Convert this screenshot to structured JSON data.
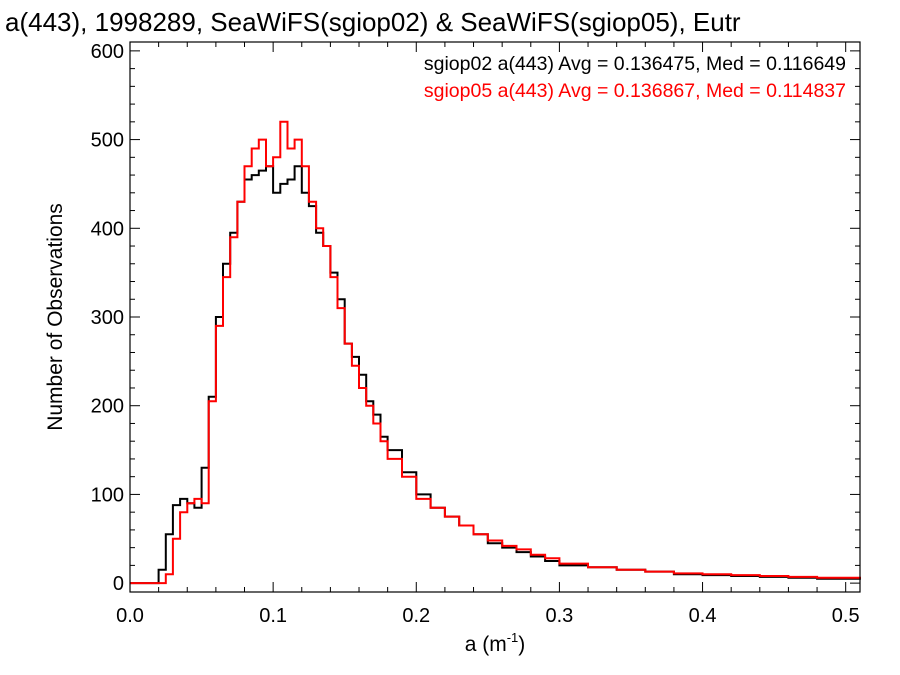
{
  "chart_data": {
    "type": "line",
    "title": "a(443), 1998289, SeaWiFS(sgiop02) & SeaWiFS(sgiop05), Eutr",
    "xlabel": "a (m",
    "xlabel_sup": "-1",
    "xlabel_end": ")",
    "ylabel": "Number of Observations",
    "xlim": [
      0.0,
      0.51
    ],
    "ylim": [
      -10,
      610
    ],
    "xticks": [
      0.0,
      0.1,
      0.2,
      0.3,
      0.4,
      0.5
    ],
    "xtick_labels": [
      "0.0",
      "0.1",
      "0.2",
      "0.3",
      "0.4",
      "0.5"
    ],
    "yticks": [
      0,
      100,
      200,
      300,
      400,
      500,
      600
    ],
    "ytick_labels": [
      "0",
      "100",
      "200",
      "300",
      "400",
      "500",
      "600"
    ],
    "grid": false,
    "legend_position": "top-right",
    "annotations": [
      {
        "text": "sgiop02 a(443) Avg = 0.136475, Med = 0.116649",
        "color": "#000000"
      },
      {
        "text": "sgiop05 a(443) Avg = 0.136867, Med = 0.114837",
        "color": "#ff0000"
      }
    ],
    "series": [
      {
        "color": "#000000",
        "x": [
          0.0,
          0.015,
          0.02,
          0.025,
          0.03,
          0.035,
          0.04,
          0.045,
          0.05,
          0.055,
          0.06,
          0.065,
          0.07,
          0.075,
          0.08,
          0.085,
          0.09,
          0.095,
          0.1,
          0.105,
          0.11,
          0.115,
          0.12,
          0.125,
          0.13,
          0.135,
          0.14,
          0.145,
          0.15,
          0.155,
          0.16,
          0.165,
          0.17,
          0.175,
          0.18,
          0.19,
          0.2,
          0.21,
          0.22,
          0.23,
          0.24,
          0.25,
          0.26,
          0.27,
          0.28,
          0.29,
          0.3,
          0.32,
          0.34,
          0.36,
          0.38,
          0.4,
          0.42,
          0.44,
          0.46,
          0.48,
          0.5,
          0.51
        ],
        "y": [
          0,
          0,
          15,
          55,
          88,
          95,
          90,
          85,
          130,
          210,
          300,
          360,
          395,
          430,
          455,
          460,
          465,
          470,
          440,
          450,
          455,
          470,
          440,
          425,
          395,
          380,
          350,
          320,
          270,
          255,
          235,
          205,
          190,
          165,
          150,
          125,
          100,
          85,
          75,
          65,
          55,
          45,
          40,
          35,
          30,
          25,
          20,
          18,
          15,
          13,
          10,
          9,
          8,
          7,
          6,
          5,
          5,
          4
        ]
      },
      {
        "color": "#ff0000",
        "x": [
          0.0,
          0.02,
          0.025,
          0.03,
          0.035,
          0.04,
          0.045,
          0.05,
          0.055,
          0.06,
          0.065,
          0.07,
          0.075,
          0.08,
          0.085,
          0.09,
          0.095,
          0.1,
          0.105,
          0.11,
          0.115,
          0.12,
          0.125,
          0.13,
          0.135,
          0.14,
          0.145,
          0.15,
          0.155,
          0.16,
          0.165,
          0.17,
          0.175,
          0.18,
          0.19,
          0.2,
          0.21,
          0.22,
          0.23,
          0.24,
          0.25,
          0.26,
          0.27,
          0.28,
          0.29,
          0.3,
          0.32,
          0.34,
          0.36,
          0.38,
          0.4,
          0.42,
          0.44,
          0.46,
          0.48,
          0.5,
          0.51
        ],
        "y": [
          0,
          0,
          10,
          50,
          80,
          90,
          95,
          90,
          205,
          290,
          345,
          390,
          430,
          470,
          490,
          500,
          470,
          480,
          520,
          490,
          500,
          470,
          430,
          400,
          380,
          345,
          310,
          270,
          245,
          220,
          200,
          180,
          160,
          140,
          120,
          95,
          85,
          75,
          65,
          55,
          48,
          42,
          38,
          32,
          28,
          22,
          18,
          15,
          13,
          11,
          10,
          9,
          8,
          7,
          6,
          6,
          5
        ]
      }
    ]
  }
}
